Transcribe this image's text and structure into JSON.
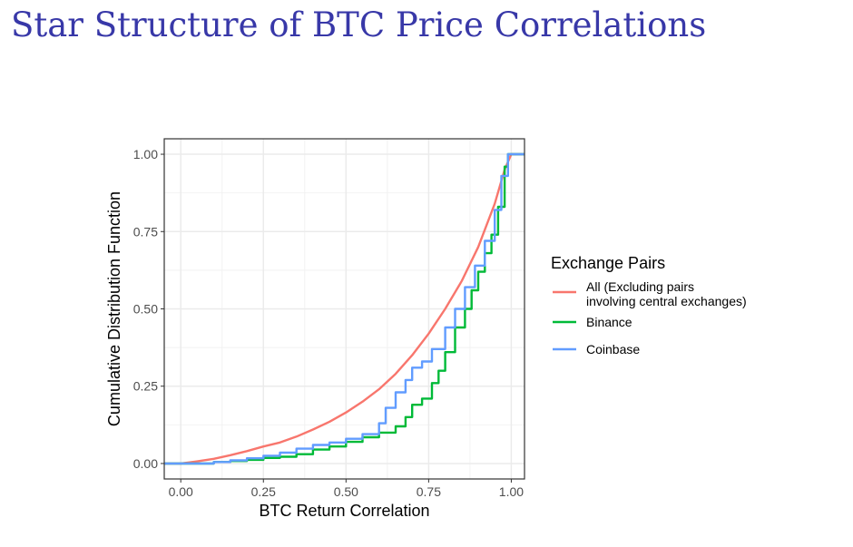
{
  "slide": {
    "title": "Star Structure of BTC Price Correlations"
  },
  "chart_data": {
    "type": "line",
    "title": "",
    "xlabel": "BTC Return Correlation",
    "ylabel": "Cumulative Distribution Function",
    "xlim": [
      -0.05,
      1.04
    ],
    "ylim": [
      -0.05,
      1.05
    ],
    "xticks": [
      0,
      0.25,
      0.5,
      0.75,
      1
    ],
    "xtick_labels": [
      "0.00",
      "0.25",
      "0.50",
      "0.75",
      "1.00"
    ],
    "yticks": [
      0,
      0.25,
      0.5,
      0.75,
      1
    ],
    "ytick_labels": [
      "0.00",
      "0.25",
      "0.50",
      "0.75",
      "1.00"
    ],
    "grid": true,
    "legend": {
      "title": "Exchange Pairs",
      "position": "right",
      "entries": [
        {
          "lines": [
            "All (Excluding pairs",
            "involving central exchanges)"
          ]
        },
        {
          "lines": [
            "Binance"
          ]
        },
        {
          "lines": [
            "Coinbase"
          ]
        }
      ]
    },
    "series": [
      {
        "name": "All (Excluding pairs involving central exchanges)",
        "color": "#f8766d",
        "step": false,
        "x": [
          -0.05,
          0.0,
          0.05,
          0.1,
          0.15,
          0.2,
          0.25,
          0.3,
          0.35,
          0.4,
          0.45,
          0.5,
          0.55,
          0.6,
          0.65,
          0.7,
          0.75,
          0.8,
          0.85,
          0.9,
          0.95,
          0.98,
          1.0,
          1.04
        ],
        "y": [
          0.0,
          0.0,
          0.007,
          0.015,
          0.027,
          0.04,
          0.055,
          0.068,
          0.087,
          0.11,
          0.135,
          0.165,
          0.2,
          0.24,
          0.29,
          0.35,
          0.42,
          0.5,
          0.59,
          0.7,
          0.84,
          0.95,
          1.0,
          1.0
        ]
      },
      {
        "name": "Binance",
        "color": "#00ba38",
        "step": true,
        "x": [
          -0.05,
          0.1,
          0.15,
          0.2,
          0.25,
          0.3,
          0.35,
          0.4,
          0.45,
          0.5,
          0.55,
          0.6,
          0.65,
          0.68,
          0.7,
          0.73,
          0.76,
          0.78,
          0.8,
          0.83,
          0.86,
          0.88,
          0.9,
          0.92,
          0.94,
          0.96,
          0.98,
          0.99,
          1.04
        ],
        "y": [
          0.0,
          0.005,
          0.008,
          0.012,
          0.018,
          0.022,
          0.03,
          0.045,
          0.055,
          0.07,
          0.085,
          0.1,
          0.12,
          0.15,
          0.19,
          0.21,
          0.26,
          0.3,
          0.36,
          0.44,
          0.5,
          0.56,
          0.62,
          0.68,
          0.74,
          0.83,
          0.96,
          1.0,
          1.0
        ]
      },
      {
        "name": "Coinbase",
        "color": "#619cff",
        "step": true,
        "x": [
          -0.05,
          0.1,
          0.15,
          0.2,
          0.25,
          0.3,
          0.35,
          0.4,
          0.45,
          0.5,
          0.55,
          0.6,
          0.62,
          0.65,
          0.68,
          0.7,
          0.73,
          0.76,
          0.8,
          0.83,
          0.86,
          0.89,
          0.92,
          0.95,
          0.97,
          0.99,
          1.04
        ],
        "y": [
          0.0,
          0.005,
          0.01,
          0.017,
          0.025,
          0.035,
          0.048,
          0.06,
          0.068,
          0.08,
          0.095,
          0.13,
          0.18,
          0.23,
          0.27,
          0.31,
          0.33,
          0.37,
          0.44,
          0.5,
          0.57,
          0.64,
          0.72,
          0.82,
          0.93,
          1.0,
          1.0
        ]
      }
    ]
  }
}
